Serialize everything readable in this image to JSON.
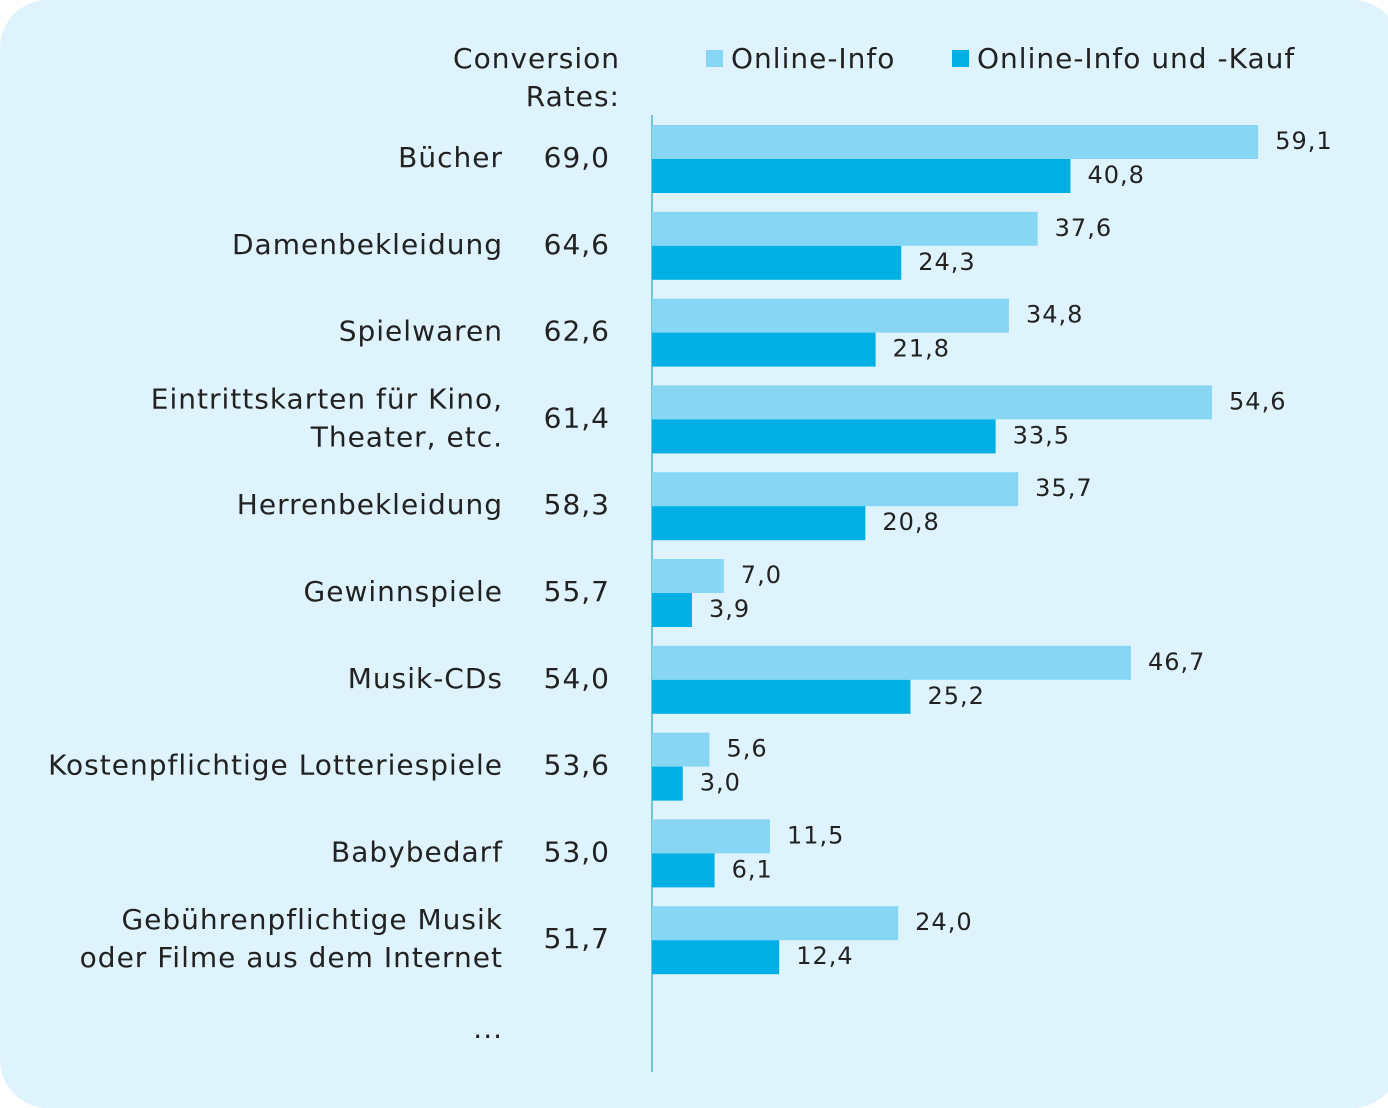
{
  "chart_data": {
    "type": "bar",
    "orientation": "horizontal",
    "conversion_title": [
      "Conversion",
      "Rates:"
    ],
    "categories": [
      [
        "Bücher"
      ],
      [
        "Damenbekleidung"
      ],
      [
        "Spielwaren"
      ],
      [
        "Eintrittskarten für Kino,",
        "Theater, etc."
      ],
      [
        "Herrenbekleidung"
      ],
      [
        "Gewinnspiele"
      ],
      [
        "Musik-CDs"
      ],
      [
        "Kostenpflichtige Lotteriespiele"
      ],
      [
        "Babybedarf"
      ],
      [
        "Gebührenpflichtige Musik",
        "oder Filme aus dem Internet"
      ]
    ],
    "conversion_rates": {
      "values": [
        69.0,
        64.6,
        62.6,
        61.4,
        58.3,
        55.7,
        54.0,
        53.6,
        53.0,
        51.7
      ],
      "value_labels": [
        "69,0",
        "64,6",
        "62,6",
        "61,4",
        "58,3",
        "55,7",
        "54,0",
        "53,6",
        "53,0",
        "51,7"
      ]
    },
    "series": [
      {
        "name": "Online-Info",
        "color": "#87d7f4",
        "values": [
          59.1,
          37.6,
          34.8,
          54.6,
          35.7,
          7.0,
          46.7,
          5.6,
          11.5,
          24.0
        ],
        "value_labels": [
          "59,1",
          "37,6",
          "34,8",
          "54,6",
          "35,7",
          "7,0",
          "46,7",
          "5,6",
          "11,5",
          "24,0"
        ]
      },
      {
        "name": "Online-Info und -Kauf",
        "color": "#00b0e4",
        "values": [
          40.8,
          24.3,
          21.8,
          33.5,
          20.8,
          3.9,
          25.2,
          3.0,
          6.1,
          12.4
        ],
        "value_labels": [
          "40,8",
          "24,3",
          "21,8",
          "33,5",
          "20,8",
          "3,9",
          "25,2",
          "3,0",
          "6,1",
          "12,4"
        ]
      }
    ],
    "more": "...",
    "xlim": [
      0,
      70
    ],
    "legend": "top"
  }
}
